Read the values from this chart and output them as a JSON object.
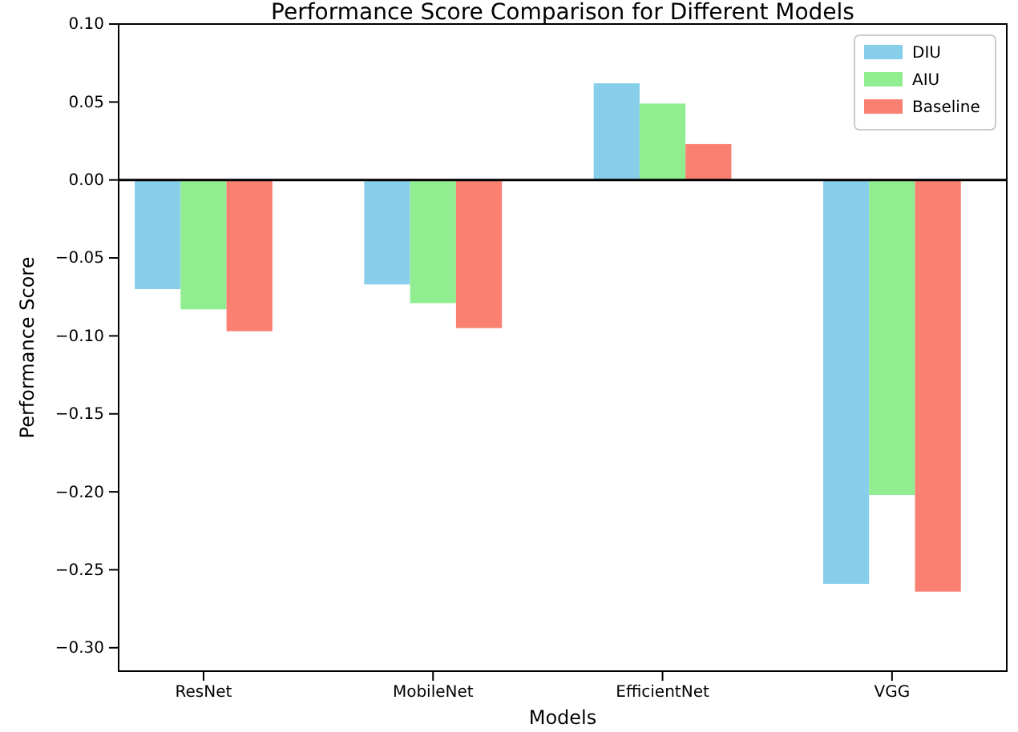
{
  "chart_data": {
    "type": "bar",
    "title": "Performance Score Comparison for Different Models",
    "xlabel": "Models",
    "ylabel": "Performance Score",
    "categories": [
      "ResNet",
      "MobileNet",
      "EfficientNet",
      "VGG"
    ],
    "series": [
      {
        "name": "DIU",
        "color": "#87ceeb",
        "values": [
          -0.07,
          -0.067,
          0.062,
          -0.259
        ]
      },
      {
        "name": "AIU",
        "color": "#90ee90",
        "values": [
          -0.083,
          -0.079,
          0.049,
          -0.202
        ]
      },
      {
        "name": "Baseline",
        "color": "#fa8072",
        "values": [
          -0.097,
          -0.095,
          0.023,
          -0.264
        ]
      }
    ],
    "ylim": [
      -0.315,
      0.1
    ],
    "yticks": [
      {
        "value": -0.3,
        "label": "−0.30"
      },
      {
        "value": -0.25,
        "label": "−0.25"
      },
      {
        "value": -0.2,
        "label": "−0.20"
      },
      {
        "value": -0.15,
        "label": "−0.15"
      },
      {
        "value": -0.1,
        "label": "−0.10"
      },
      {
        "value": -0.05,
        "label": "−0.05"
      },
      {
        "value": 0,
        "label": "0.00"
      },
      {
        "value": 0.05,
        "label": "0.05"
      },
      {
        "value": 0.1,
        "label": "0.10"
      }
    ],
    "ref_lines": [
      {
        "axis": "y",
        "value": 0,
        "color": "#000000"
      }
    ],
    "legend": "top right",
    "grid": false
  }
}
